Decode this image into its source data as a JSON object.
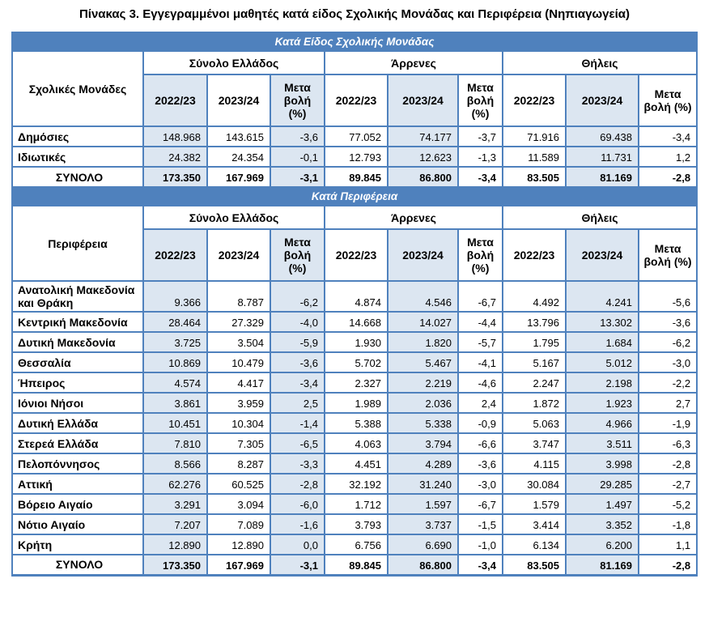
{
  "title": "Πίνακας 3. Εγγεγραμμένοι μαθητές κατά είδος Σχολικής Μονάδας και Περιφέρεια (Νηπιαγωγεία)",
  "colors": {
    "header_bar": "#4F81BD",
    "light_cell": "#DCE6F1",
    "border": "#4F81BD",
    "bar_text": "#FFFFFF",
    "text": "#000000"
  },
  "groups": [
    "Σύνολο Ελλάδος",
    "Άρρενες",
    "Θήλεις"
  ],
  "sub_headers": [
    "2022/23",
    "2023/24",
    "Μετα βολή (%)"
  ],
  "section1": {
    "bar": "Κατά Είδος Σχολικής Μονάδας",
    "label_header": "Σχολικές Μονάδες",
    "rows": [
      {
        "label": "Δημόσιες",
        "values": [
          "148.968",
          "143.615",
          "-3,6",
          "77.052",
          "74.177",
          "-3,7",
          "71.916",
          "69.438",
          "-3,4"
        ]
      },
      {
        "label": "Ιδιωτικές",
        "values": [
          "24.382",
          "24.354",
          "-0,1",
          "12.793",
          "12.623",
          "-1,3",
          "11.589",
          "11.731",
          "1,2"
        ]
      }
    ],
    "total": {
      "label": "ΣΥΝΟΛΟ",
      "values": [
        "173.350",
        "167.969",
        "-3,1",
        "89.845",
        "86.800",
        "-3,4",
        "83.505",
        "81.169",
        "-2,8"
      ]
    }
  },
  "section2": {
    "bar": "Κατά Περιφέρεια",
    "label_header": "Περιφέρεια",
    "rows": [
      {
        "label": "Ανατολική Μακεδονία και Θράκη",
        "values": [
          "9.366",
          "8.787",
          "-6,2",
          "4.874",
          "4.546",
          "-6,7",
          "4.492",
          "4.241",
          "-5,6"
        ]
      },
      {
        "label": "Κεντρική Μακεδονία",
        "values": [
          "28.464",
          "27.329",
          "-4,0",
          "14.668",
          "14.027",
          "-4,4",
          "13.796",
          "13.302",
          "-3,6"
        ]
      },
      {
        "label": "Δυτική Μακεδονία",
        "values": [
          "3.725",
          "3.504",
          "-5,9",
          "1.930",
          "1.820",
          "-5,7",
          "1.795",
          "1.684",
          "-6,2"
        ]
      },
      {
        "label": "Θεσσαλία",
        "values": [
          "10.869",
          "10.479",
          "-3,6",
          "5.702",
          "5.467",
          "-4,1",
          "5.167",
          "5.012",
          "-3,0"
        ]
      },
      {
        "label": "Ήπειρος",
        "values": [
          "4.574",
          "4.417",
          "-3,4",
          "2.327",
          "2.219",
          "-4,6",
          "2.247",
          "2.198",
          "-2,2"
        ]
      },
      {
        "label": "Ιόνιοι Νήσοι",
        "values": [
          "3.861",
          "3.959",
          "2,5",
          "1.989",
          "2.036",
          "2,4",
          "1.872",
          "1.923",
          "2,7"
        ]
      },
      {
        "label": "Δυτική Ελλάδα",
        "values": [
          "10.451",
          "10.304",
          "-1,4",
          "5.388",
          "5.338",
          "-0,9",
          "5.063",
          "4.966",
          "-1,9"
        ]
      },
      {
        "label": "Στερεά Ελλάδα",
        "values": [
          "7.810",
          "7.305",
          "-6,5",
          "4.063",
          "3.794",
          "-6,6",
          "3.747",
          "3.511",
          "-6,3"
        ]
      },
      {
        "label": "Πελοπόννησος",
        "values": [
          "8.566",
          "8.287",
          "-3,3",
          "4.451",
          "4.289",
          "-3,6",
          "4.115",
          "3.998",
          "-2,8"
        ]
      },
      {
        "label": "Αττική",
        "values": [
          "62.276",
          "60.525",
          "-2,8",
          "32.192",
          "31.240",
          "-3,0",
          "30.084",
          "29.285",
          "-2,7"
        ]
      },
      {
        "label": "Βόρειο Αιγαίο",
        "values": [
          "3.291",
          "3.094",
          "-6,0",
          "1.712",
          "1.597",
          "-6,7",
          "1.579",
          "1.497",
          "-5,2"
        ]
      },
      {
        "label": "Νότιο Αιγαίο",
        "values": [
          "7.207",
          "7.089",
          "-1,6",
          "3.793",
          "3.737",
          "-1,5",
          "3.414",
          "3.352",
          "-1,8"
        ]
      },
      {
        "label": "Κρήτη",
        "values": [
          "12.890",
          "12.890",
          "0,0",
          "6.756",
          "6.690",
          "-1,0",
          "6.134",
          "6.200",
          "1,1"
        ]
      }
    ],
    "total": {
      "label": "ΣΥΝΟΛΟ",
      "values": [
        "173.350",
        "167.969",
        "-3,1",
        "89.845",
        "86.800",
        "-3,4",
        "83.505",
        "81.169",
        "-2,8"
      ]
    }
  }
}
